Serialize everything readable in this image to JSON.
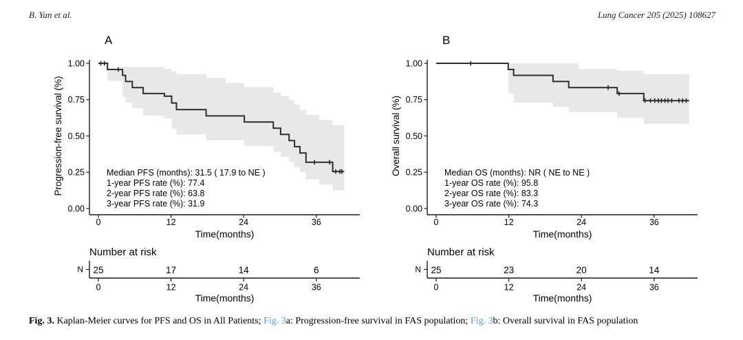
{
  "header": {
    "left": "B. Yan et al.",
    "right": "Lung Cancer 205 (2025) 108627"
  },
  "caption": {
    "fig_label": "Fig. 3.",
    "seg1": " Kaplan-Meier curves for PFS and OS in All Patients; ",
    "link1": "Fig. 3",
    "seg2": "a: Progression-free survival in FAS population; ",
    "link2": "Fig. 3",
    "seg3": "b: Overall survival in FAS population"
  },
  "colors": {
    "curve": "#2d2d2d",
    "band": "#e8e8e8",
    "axis": "#1a1a1a",
    "text": "#000000",
    "link": "#55a1d6"
  },
  "chart_data": [
    {
      "type": "line",
      "subtype": "kaplan-meier-step",
      "panel_label": "A",
      "series_name": "PFS",
      "ylabel": "Progression-free survival (%)",
      "xlabel": "Time(months)",
      "xticks": [
        0,
        12,
        24,
        36
      ],
      "ytick_labels": [
        "1.00",
        "0.75",
        "0.50",
        "0.25",
        "0.00"
      ],
      "ytick_values": [
        1.0,
        0.75,
        0.5,
        0.25,
        0.0
      ],
      "xlim": [
        0,
        43
      ],
      "ylim": [
        0,
        1
      ],
      "grid": false,
      "legend": false,
      "annotations": [
        "Median PFS (months): 31.5 ( 17.9 to NE )",
        "1-year PFS rate (%): 77.4",
        "2-year PFS rate (%): 63.8",
        "3-year PFS rate (%): 31.9"
      ],
      "curve_steps": [
        [
          0,
          1.0
        ],
        [
          1.5,
          0.958
        ],
        [
          4.0,
          0.917
        ],
        [
          4.5,
          0.875
        ],
        [
          5.6,
          0.833
        ],
        [
          7.4,
          0.792
        ],
        [
          10.9,
          0.774
        ],
        [
          12.1,
          0.727
        ],
        [
          12.9,
          0.681
        ],
        [
          17.8,
          0.638
        ],
        [
          24.1,
          0.596
        ],
        [
          28.9,
          0.553
        ],
        [
          30.1,
          0.511
        ],
        [
          31.5,
          0.468
        ],
        [
          32.4,
          0.426
        ],
        [
          33.3,
          0.383
        ],
        [
          34.3,
          0.319
        ],
        [
          38.7,
          0.255
        ],
        [
          40.6,
          0.255
        ]
      ],
      "censor_marks": [
        [
          0.4,
          1.0
        ],
        [
          1.0,
          1.0
        ],
        [
          3.3,
          0.958
        ],
        [
          35.7,
          0.319
        ],
        [
          38.2,
          0.319
        ],
        [
          39.2,
          0.255
        ],
        [
          39.9,
          0.255
        ],
        [
          40.2,
          0.255
        ]
      ],
      "confidence_band": [
        [
          1.5,
          0.88,
          0.962
        ],
        [
          4.0,
          0.77,
          0.975
        ],
        [
          4.5,
          0.73,
          0.975
        ],
        [
          5.6,
          0.69,
          0.975
        ],
        [
          7.4,
          0.64,
          0.975
        ],
        [
          10.9,
          0.62,
          0.96
        ],
        [
          12.1,
          0.55,
          0.945
        ],
        [
          12.9,
          0.51,
          0.925
        ],
        [
          17.8,
          0.47,
          0.9
        ],
        [
          21.0,
          0.47,
          0.865
        ],
        [
          24.1,
          0.43,
          0.835
        ],
        [
          28.9,
          0.39,
          0.8
        ],
        [
          30.1,
          0.355,
          0.775
        ],
        [
          31.5,
          0.32,
          0.745
        ],
        [
          32.4,
          0.285,
          0.715
        ],
        [
          33.3,
          0.25,
          0.68
        ],
        [
          34.3,
          0.2,
          0.645
        ],
        [
          36.5,
          0.165,
          0.61
        ],
        [
          38.7,
          0.125,
          0.575
        ],
        [
          40.6,
          0.125,
          0.575
        ]
      ],
      "number_at_risk": {
        "title": "Number at risk",
        "axis_label": "N",
        "times": [
          0,
          12,
          24,
          36
        ],
        "values": [
          "25",
          "17",
          "14",
          "6"
        ],
        "xlabel": "Time(months)"
      }
    },
    {
      "type": "line",
      "subtype": "kaplan-meier-step",
      "panel_label": "B",
      "series_name": "OS",
      "ylabel": "Overall survival (%)",
      "xlabel": "Time(months)",
      "xticks": [
        0,
        12,
        24,
        36
      ],
      "ytick_labels": [
        "1.00",
        "0.75",
        "0.50",
        "0.25",
        "0.00"
      ],
      "ytick_values": [
        1.0,
        0.75,
        0.5,
        0.25,
        0.0
      ],
      "xlim": [
        0,
        43
      ],
      "ylim": [
        0,
        1
      ],
      "grid": false,
      "legend": false,
      "annotations": [
        "Median OS (months): NR ( NE to NE )",
        "1-year OS rate (%): 95.8",
        "2-year OS rate (%): 83.3",
        "3-year OS rate (%): 74.3"
      ],
      "curve_steps": [
        [
          0,
          1.0
        ],
        [
          11.9,
          0.958
        ],
        [
          12.8,
          0.917
        ],
        [
          19.3,
          0.875
        ],
        [
          21.9,
          0.833
        ],
        [
          29.9,
          0.792
        ],
        [
          34.3,
          0.743
        ],
        [
          41.8,
          0.743
        ]
      ],
      "censor_marks": [
        [
          5.7,
          1.0
        ],
        [
          28.4,
          0.833
        ],
        [
          30.2,
          0.792
        ],
        [
          34.5,
          0.743
        ],
        [
          35.4,
          0.743
        ],
        [
          36.1,
          0.743
        ],
        [
          36.7,
          0.743
        ],
        [
          37.2,
          0.743
        ],
        [
          37.8,
          0.743
        ],
        [
          38.3,
          0.743
        ],
        [
          38.9,
          0.743
        ],
        [
          40.1,
          0.743
        ],
        [
          40.7,
          0.743
        ],
        [
          41.3,
          0.743
        ]
      ],
      "confidence_band": [
        [
          11.9,
          0.79,
          1.0
        ],
        [
          12.8,
          0.73,
          1.0
        ],
        [
          19.3,
          0.7,
          1.0
        ],
        [
          21.9,
          0.665,
          1.0
        ],
        [
          23.5,
          0.665,
          0.96
        ],
        [
          29.9,
          0.625,
          0.95
        ],
        [
          34.3,
          0.585,
          0.925
        ],
        [
          41.8,
          0.585,
          0.925
        ]
      ],
      "number_at_risk": {
        "title": "Number at risk",
        "axis_label": "N",
        "times": [
          0,
          12,
          24,
          36
        ],
        "values": [
          "25",
          "23",
          "20",
          "14"
        ],
        "xlabel": "Time(months)"
      }
    }
  ]
}
